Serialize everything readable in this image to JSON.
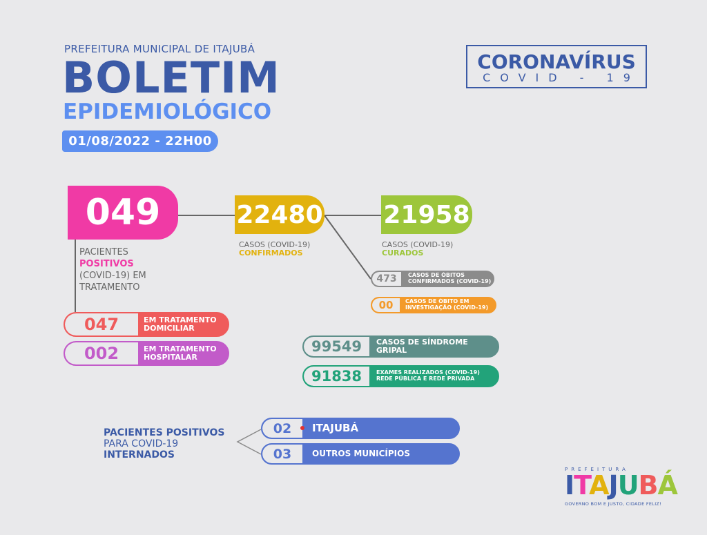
{
  "header": {
    "org": "PREFEITURA MUNICIPAL DE ITAJUBÁ",
    "title": "BOLETIM",
    "subtitle": "EPIDEMIOLÓGICO",
    "date": "01/08/2022 - 22H00"
  },
  "badge": {
    "title": "CORONAVÍRUS",
    "subtitle": "COVID - 19"
  },
  "em_tratamento": {
    "value": "049",
    "label_line1": "PACIENTES",
    "label_line2": "POSITIVOS",
    "label_line3": "(COVID-19) EM",
    "label_line4": "TRATAMENTO"
  },
  "confirmados": {
    "value": "22480",
    "label_line1": "CASOS (COVID-19)",
    "label_line2": "CONFIRMADOS"
  },
  "curados": {
    "value": "21958",
    "label_line1": "CASOS (COVID-19)",
    "label_line2": "CURADOS"
  },
  "obitos": {
    "value": "473",
    "label_line1": "CASOS DE ÓBITOS",
    "label_line2": "CONFIRMADOS (COVID-19)"
  },
  "investigacao": {
    "value": "00",
    "label_line1": "CASOS DE ÓBITO EM",
    "label_line2": "INVESTIGAÇÃO (COVID-19)"
  },
  "domiciliar": {
    "value": "047",
    "label_line1": "EM TRATAMENTO",
    "label_line2": "DOMICILIAR"
  },
  "hospitalar": {
    "value": "002",
    "label_line1": "EM TRATAMENTO",
    "label_line2": "HOSPITALAR"
  },
  "sindrome": {
    "value": "99549",
    "label": "CASOS DE SÍNDROME GRIPAL"
  },
  "exames": {
    "value": "91838",
    "label_line1": "EXAMES REALIZADOS (COVID-19)",
    "label_line2": "REDE PÚBLICA E REDE PRIVADA"
  },
  "internados": {
    "label_line1": "PACIENTES POSITIVOS",
    "label_line2": "PARA COVID-19",
    "label_line3": "INTERNADOS",
    "itajuba_value": "02",
    "itajuba_label": "ITAJUBÁ",
    "outros_value": "03",
    "outros_label": "OUTROS MUNICÍPIOS"
  },
  "logo": {
    "pre": "PREFEITURA",
    "letters": [
      "I",
      "T",
      "A",
      "J",
      "U",
      "B",
      "Á"
    ],
    "letter_colors": [
      "#3b5aa6",
      "#f03aa5",
      "#e2b20e",
      "#3b5aa6",
      "#22a37a",
      "#ef5b5b",
      "#9dc63b"
    ],
    "tagline": "GOVERNO BOM E JUSTO, CIDADE FELIZ!"
  },
  "colors": {
    "navy": "#3b5aa6",
    "light_blue": "#5d8ff0",
    "pink": "#f03aa5",
    "yellow": "#e2b20e",
    "lime": "#9dc63b",
    "gray": "#8b8b8b",
    "orange": "#f39a2a",
    "coral": "#ef5b5b",
    "purple": "#c25bc9",
    "teal": "#5e8f8a",
    "green": "#22a37a",
    "blue": "#5574cf"
  }
}
